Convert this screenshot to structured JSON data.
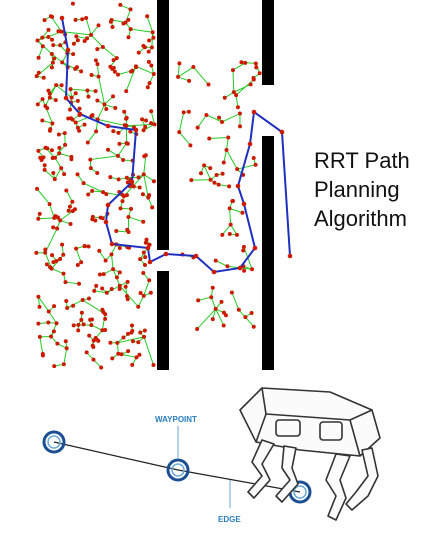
{
  "title": {
    "line1": "RRT Path",
    "line2": "Planning",
    "line3": "Algorithm"
  },
  "graph": {
    "waypoint_label": "WAYPOINT",
    "edge_label": "EDGE"
  },
  "colors": {
    "wall": "#000000",
    "tree_edge": "#22cc22",
    "tree_node": "#cc1a00",
    "path": "#1f2fc0",
    "waypoint_ring": "#1b4f94",
    "waypoint_label": "#2a7fc0",
    "robot_stroke": "#333333"
  },
  "icons": {
    "robot": "quadruped-robot-icon",
    "waypoint": "waypoint-ring-icon"
  }
}
